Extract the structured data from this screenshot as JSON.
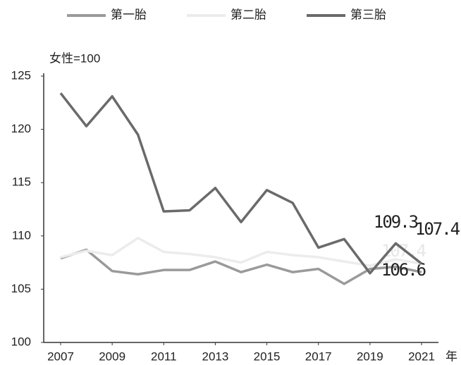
{
  "chart_data": {
    "type": "line",
    "y_unit": "女性=100",
    "x_unit": "年",
    "x": [
      2007,
      2008,
      2009,
      2010,
      2011,
      2012,
      2013,
      2014,
      2015,
      2016,
      2017,
      2018,
      2019,
      2020,
      2021
    ],
    "xticks": [
      2007,
      2009,
      2011,
      2013,
      2015,
      2017,
      2019,
      2021
    ],
    "xlim": [
      2007,
      2021
    ],
    "ylim": [
      100,
      125
    ],
    "yticks": [
      100,
      105,
      110,
      115,
      120,
      125
    ],
    "series": [
      {
        "name": "第一胎",
        "color": "#9a9a9a",
        "values": [
          107.9,
          108.7,
          106.7,
          106.4,
          106.8,
          106.8,
          107.6,
          106.6,
          107.3,
          106.6,
          106.9,
          105.5,
          106.9,
          107.1,
          106.6
        ],
        "value_labels": [
          null,
          null,
          null,
          null,
          null,
          null,
          null,
          null,
          null,
          null,
          null,
          null,
          null,
          null,
          "106.6"
        ]
      },
      {
        "name": "第二胎",
        "color": "#ececec",
        "values": [
          108.0,
          108.6,
          108.2,
          109.8,
          108.5,
          108.3,
          108.0,
          107.5,
          108.5,
          108.2,
          108.0,
          107.6,
          107.2,
          107.8,
          107.4
        ],
        "value_labels": [
          null,
          null,
          null,
          null,
          null,
          null,
          null,
          null,
          null,
          null,
          null,
          null,
          null,
          null,
          "107.4"
        ]
      },
      {
        "name": "第三胎",
        "color": "#6a6a6a",
        "values": [
          123.4,
          120.3,
          123.1,
          119.5,
          112.3,
          112.4,
          114.5,
          111.3,
          114.3,
          113.1,
          108.9,
          109.7,
          106.5,
          109.3,
          107.4
        ],
        "value_labels": [
          null,
          null,
          null,
          null,
          null,
          null,
          null,
          null,
          null,
          null,
          null,
          null,
          null,
          "109.3",
          "107.4"
        ]
      }
    ]
  }
}
